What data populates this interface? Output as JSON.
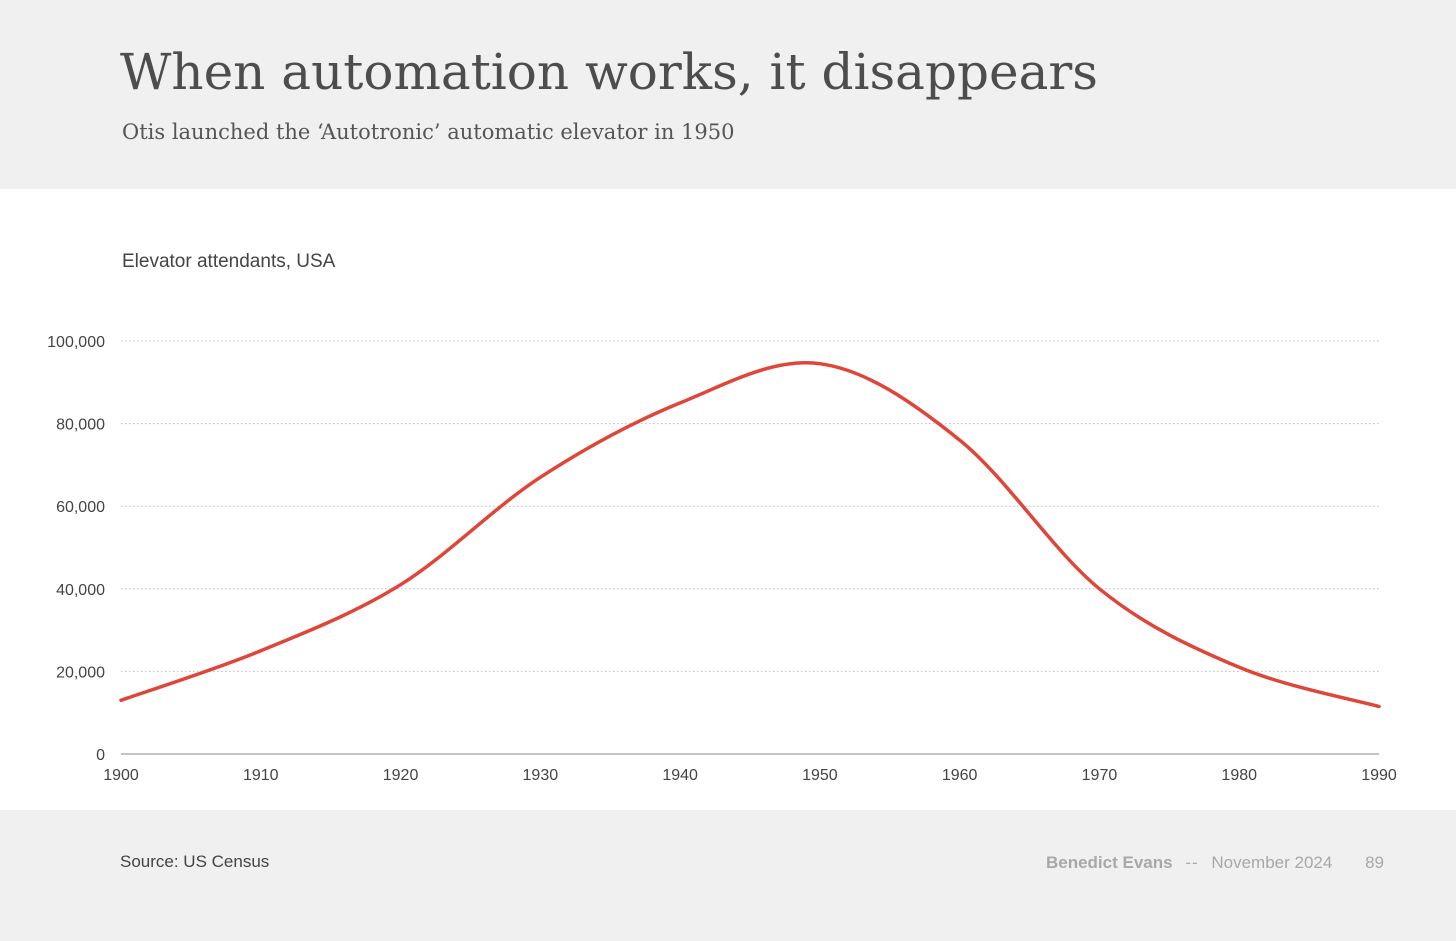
{
  "title": "When automation works, it disappears",
  "subtitle": "Otis launched the ‘Autotronic’ automatic elevator in 1950",
  "footer": {
    "source": "Source: US Census",
    "author": "Benedict Evans",
    "separator": "--",
    "date": "November 2024",
    "page_number": "89"
  },
  "colors": {
    "line": "#e0453a",
    "header_background": "#f0f0f0",
    "panel_background": "#ffffff"
  },
  "chart_data": {
    "type": "line",
    "title": "Elevator attendants, USA",
    "xlabel": "",
    "ylabel": "",
    "x": [
      1900,
      1910,
      1920,
      1930,
      1940,
      1950,
      1960,
      1970,
      1980,
      1990
    ],
    "series": [
      {
        "values": [
          13000,
          25000,
          41000,
          67000,
          85000,
          94500,
          76000,
          40000,
          21000,
          11500
        ]
      }
    ],
    "xlim": [
      1900,
      1990
    ],
    "ylim": [
      0,
      100000
    ],
    "x_ticks": [
      "1900",
      "1910",
      "1920",
      "1930",
      "1940",
      "1950",
      "1960",
      "1970",
      "1980",
      "1990"
    ],
    "y_ticks": [
      "0",
      "20,000",
      "40,000",
      "60,000",
      "80,000",
      "100,000"
    ],
    "y_tick_values": [
      0,
      20000,
      40000,
      60000,
      80000,
      100000
    ],
    "grid": "horizontal dotted",
    "legend": "none",
    "smooth": true
  }
}
